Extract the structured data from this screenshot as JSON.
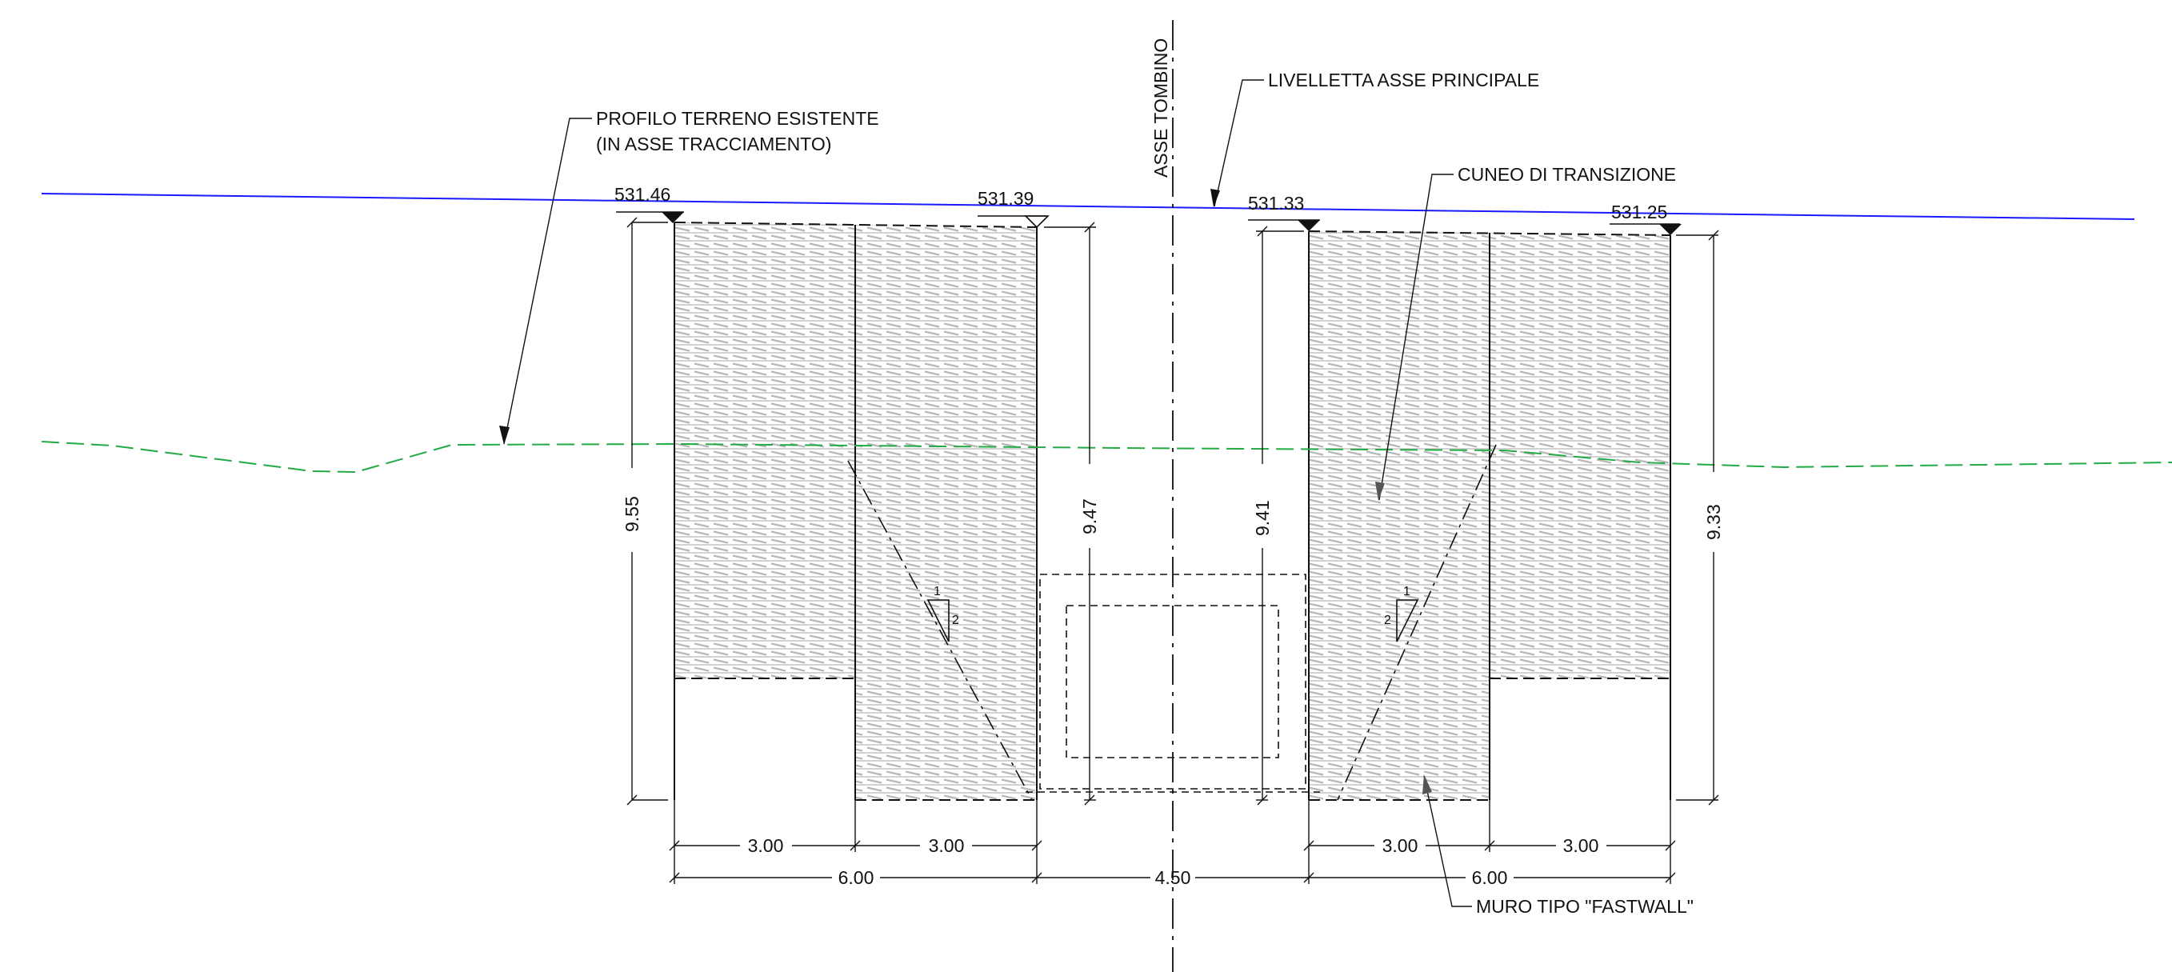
{
  "labels": {
    "existing_ground_line1": "PROFILO TERRENO ESISTENTE",
    "existing_ground_line2": "(IN ASSE TRACCIAMENTO)",
    "culvert_axis": "ASSE TOMBINO",
    "main_axis_grade": "LIVELLETTA ASSE PRINCIPALE",
    "transition_wedge": "CUNEO DI TRANSIZIONE",
    "wall_type": "MURO TIPO \"FASTWALL\""
  },
  "elevations": {
    "left_outer": "531.46",
    "left_inner": "531.39",
    "right_inner": "531.33",
    "right_outer": "531.25"
  },
  "heights": {
    "left_outer": "9.55",
    "left_inner": "9.47",
    "right_inner": "9.41",
    "right_outer": "9.33"
  },
  "widths": {
    "left_a": "3.00",
    "left_b": "3.00",
    "left_total": "6.00",
    "culvert": "4.50",
    "right_a": "3.00",
    "right_b": "3.00",
    "right_total": "6.00"
  },
  "slope": {
    "rise": "1",
    "run": "2"
  },
  "colors": {
    "grade_line": "#1a1aff",
    "ground_line": "#22aa44",
    "line": "#111111",
    "hatch": "#bdbdbd"
  }
}
